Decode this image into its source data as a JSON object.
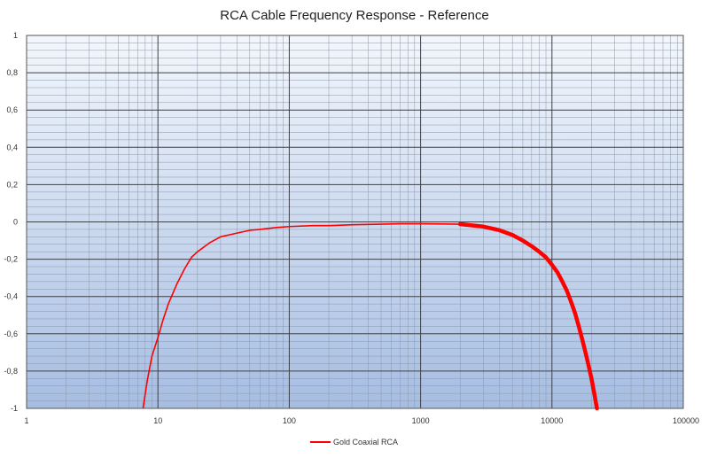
{
  "chart_data": {
    "type": "line",
    "title": "RCA Cable Frequency Response - Reference",
    "xlabel": "",
    "ylabel": "",
    "x_scale": "log",
    "xlim": [
      1,
      100000
    ],
    "ylim": [
      -1,
      1
    ],
    "x_ticks": [
      1,
      10,
      100,
      1000,
      10000,
      100000
    ],
    "x_tick_labels": [
      "1",
      "10",
      "100",
      "1000",
      "10000",
      "100000"
    ],
    "y_ticks": [
      1,
      0.8,
      0.6,
      0.4,
      0.2,
      0,
      -0.2,
      -0.4,
      -0.6,
      -0.8,
      -1
    ],
    "y_tick_labels": [
      "1",
      "0,8",
      "0,6",
      "0,4",
      "0,2",
      "0",
      "-0,2",
      "-0,4",
      "-0,6",
      "-0,8",
      "-1"
    ],
    "grid": true,
    "legend_position": "bottom",
    "series": [
      {
        "name": "Gold Coaxial RCA",
        "color": "#ff0000",
        "x": [
          7.7,
          8.3,
          9,
          10,
          11,
          12,
          14,
          16,
          18,
          20,
          25,
          30,
          40,
          50,
          60,
          80,
          100,
          150,
          200,
          300,
          500,
          700,
          1000,
          2000,
          3000,
          4000,
          5000,
          6000,
          7000,
          8000,
          9000,
          10000,
          11000,
          12000,
          13000,
          14000,
          15000,
          16000,
          17000,
          18000,
          19000,
          20000,
          21000,
          22000
        ],
        "y": [
          -1.0,
          -0.85,
          -0.72,
          -0.62,
          -0.52,
          -0.44,
          -0.33,
          -0.25,
          -0.19,
          -0.16,
          -0.11,
          -0.08,
          -0.06,
          -0.045,
          -0.04,
          -0.03,
          -0.025,
          -0.02,
          -0.02,
          -0.015,
          -0.012,
          -0.01,
          -0.01,
          -0.012,
          -0.025,
          -0.045,
          -0.07,
          -0.1,
          -0.13,
          -0.16,
          -0.19,
          -0.23,
          -0.27,
          -0.32,
          -0.37,
          -0.43,
          -0.49,
          -0.56,
          -0.63,
          -0.7,
          -0.77,
          -0.84,
          -0.92,
          -1.0
        ]
      }
    ]
  }
}
